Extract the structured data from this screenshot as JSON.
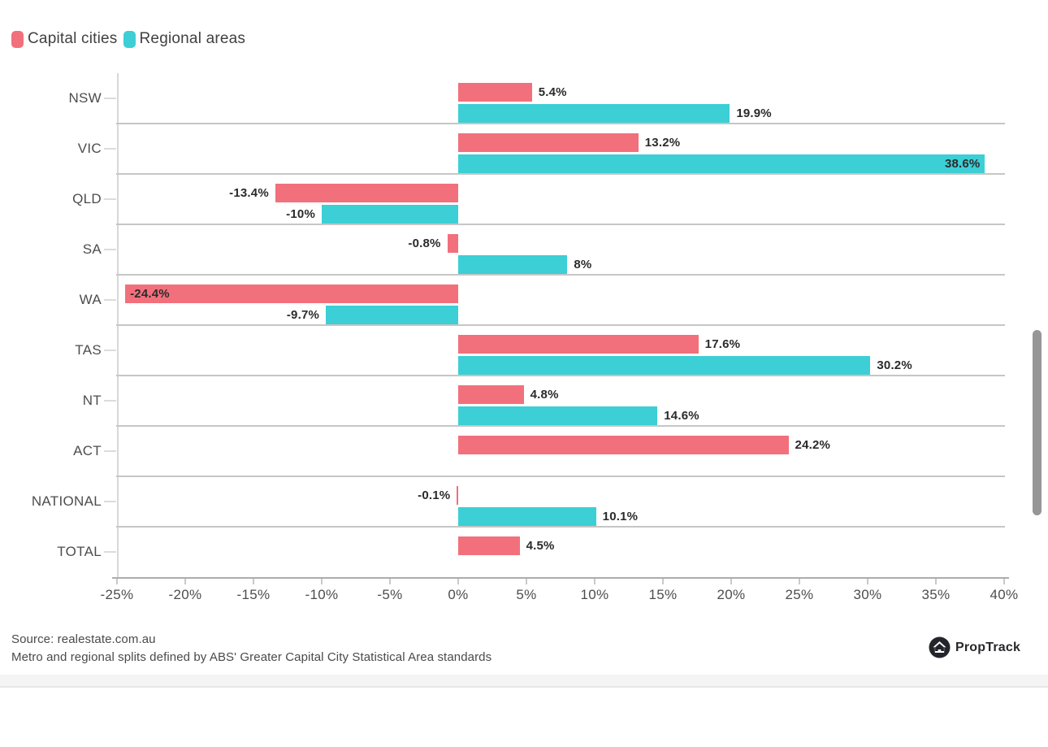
{
  "legend": {
    "items": [
      {
        "label": "Capital cities",
        "color": "#f2707c"
      },
      {
        "label": "Regional areas",
        "color": "#3ccfd5"
      }
    ]
  },
  "chart_data": {
    "type": "bar",
    "orientation": "horizontal",
    "categories": [
      "NSW",
      "VIC",
      "QLD",
      "SA",
      "WA",
      "TAS",
      "NT",
      "ACT",
      "NATIONAL",
      "TOTAL"
    ],
    "series": [
      {
        "name": "Capital cities",
        "color": "#f2707c",
        "values": [
          5.4,
          13.2,
          -13.4,
          -0.8,
          -24.4,
          17.6,
          4.8,
          24.2,
          -0.1,
          4.5
        ],
        "labels": [
          "5.4%",
          "13.2%",
          "-13.4%",
          "-0.8%",
          "-24.4%",
          "17.6%",
          "4.8%",
          "24.2%",
          "-0.1%",
          "4.5%"
        ],
        "label_inside": [
          false,
          false,
          false,
          false,
          true,
          false,
          false,
          false,
          false,
          false
        ]
      },
      {
        "name": "Regional areas",
        "color": "#3ccfd5",
        "values": [
          19.9,
          38.6,
          -10,
          8,
          -9.7,
          30.2,
          14.6,
          null,
          10.1,
          null
        ],
        "labels": [
          "19.9%",
          "38.6%",
          "-10%",
          "8%",
          "-9.7%",
          "30.2%",
          "14.6%",
          null,
          "10.1%",
          null
        ],
        "label_inside": [
          false,
          true,
          false,
          false,
          false,
          false,
          false,
          false,
          false,
          false
        ]
      }
    ],
    "xlim": [
      -25,
      40
    ],
    "x_ticks": [
      "-25%",
      "-20%",
      "-15%",
      "-10%",
      "-5%",
      "0%",
      "5%",
      "10%",
      "15%",
      "20%",
      "25%",
      "30%",
      "35%",
      "40%"
    ],
    "x_tick_values": [
      -25,
      -20,
      -15,
      -10,
      -5,
      0,
      5,
      10,
      15,
      20,
      25,
      30,
      35,
      40
    ],
    "grid": "row-separators-only",
    "legend_position": "top-left"
  },
  "footer": {
    "source_line1": "Source: realestate.com.au",
    "source_line2": "Metro and regional splits defined by ABS' Greater Capital City Statistical Area standards",
    "logo_text": "PropTrack"
  }
}
